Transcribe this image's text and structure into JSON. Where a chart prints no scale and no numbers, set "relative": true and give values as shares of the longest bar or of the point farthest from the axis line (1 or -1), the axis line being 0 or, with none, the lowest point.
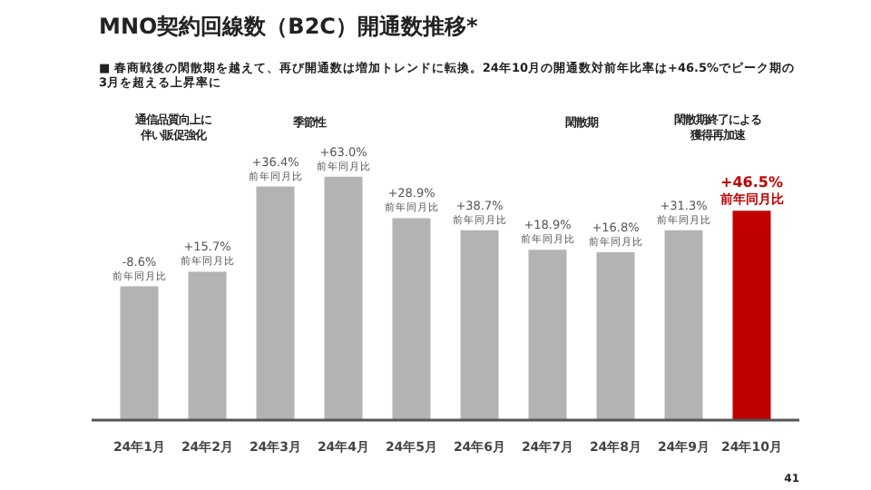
{
  "chart_data": {
    "type": "bar",
    "title": "MNO契約回線数（B2C）開通数推移*",
    "subtitle": "■ 春商戦後の閑散期を越えて、再び開通数は増加トレンドに転換。24年10月の開通数対前年比率は+46.5%でピーク期の3月を超える上昇率に",
    "categories": [
      "24年1月",
      "24年2月",
      "24年3月",
      "24年4月",
      "24年5月",
      "24年6月",
      "24年7月",
      "24年8月",
      "24年9月",
      "24年10月"
    ],
    "values": [
      0.55,
      0.61,
      0.96,
      1,
      0.83,
      0.78,
      0.7,
      0.69,
      0.78,
      0.86
    ],
    "relative": true,
    "colors": [
      "#b3b3b3",
      "#b3b3b3",
      "#b3b3b3",
      "#b3b3b3",
      "#b3b3b3",
      "#b3b3b3",
      "#b3b3b3",
      "#b3b3b3",
      "#b3b3b3",
      "#bf0000"
    ],
    "annotations": [
      "通信品質向上に伴い販促強化",
      "季節性",
      "閑散期",
      "閑散期終了による獲得再加速",
      "-8.6%",
      "前年同月比",
      "+15.7%",
      "前年同月比",
      "+36.4%",
      "前年同月比",
      "+63.0%",
      "前年同月比",
      "+28.9%",
      "前年同月比",
      "+38.7%",
      "前年同月比",
      "+18.9%",
      "前年同月比",
      "+16.8%",
      "前年同月比",
      "+31.3%",
      "前年同月比",
      "+46.5%",
      "前年同月比",
      "41"
    ],
    "grid": false
  }
}
